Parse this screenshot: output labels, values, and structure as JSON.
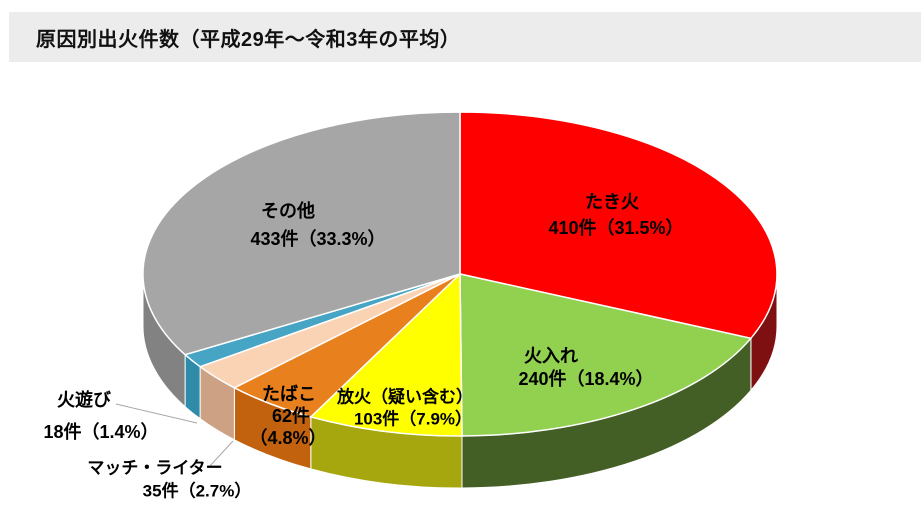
{
  "header": {
    "title": "原因別出火件数（平成29年～令和3年の平均）"
  },
  "chart_data": {
    "type": "pie",
    "style": "3d-pie",
    "title": "原因別出火件数（平成29年～令和3年の平均）",
    "legend_position": "none",
    "labels_on_chart": true,
    "start_angle_deg": 0,
    "direction": "clockwise",
    "slices": [
      {
        "label": "たき火",
        "count": 410,
        "pct": 31.5,
        "value_text": "410件（31.5%）",
        "color": "#FF0000",
        "side_color": "#7F1012"
      },
      {
        "label": "火入れ",
        "count": 240,
        "pct": 18.4,
        "value_text": "240件（18.4%）",
        "color": "#92D050",
        "side_color": "#445F25"
      },
      {
        "label": "放火（疑い含む）",
        "count": 103,
        "pct": 7.9,
        "value_text": "103件（7.9%）",
        "color": "#FFFF00",
        "side_color": "#A6A60E"
      },
      {
        "label": "たばこ",
        "count": 62,
        "pct": 4.8,
        "value_text": "62件",
        "value_text2": "（4.8%）",
        "color": "#E9801E",
        "side_color": "#C2620F"
      },
      {
        "label": "マッチ・ライター",
        "count": 35,
        "pct": 2.7,
        "value_text": "35件（2.7%）",
        "color": "#FAD3B4",
        "side_color": "#CDA183"
      },
      {
        "label": "火遊び",
        "count": 18,
        "pct": 1.4,
        "value_text": "18件（1.4%）",
        "color": "#46A4C4",
        "side_color": "#2F8CA8"
      },
      {
        "label": "その他",
        "count": 433,
        "pct": 33.3,
        "value_text": "433件（33.3%）",
        "color": "#A6A6A6",
        "side_color": "#828282"
      }
    ],
    "leader_line_color": "#A8A8A8"
  }
}
